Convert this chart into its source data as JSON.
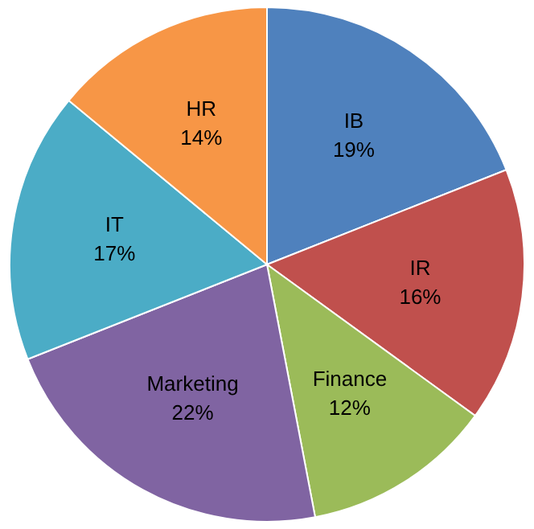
{
  "chart_data": {
    "type": "pie",
    "categories": [
      "IB",
      "IR",
      "Finance",
      "Marketing",
      "IT",
      "HR"
    ],
    "values": [
      19,
      16,
      12,
      22,
      17,
      14
    ],
    "value_labels": [
      "19%",
      "16%",
      "12%",
      "22%",
      "17%",
      "14%"
    ],
    "colors": [
      "#4f81bd",
      "#c0504d",
      "#9bbb59",
      "#8064a2",
      "#4bacc6",
      "#f79646"
    ],
    "legend": false
  }
}
